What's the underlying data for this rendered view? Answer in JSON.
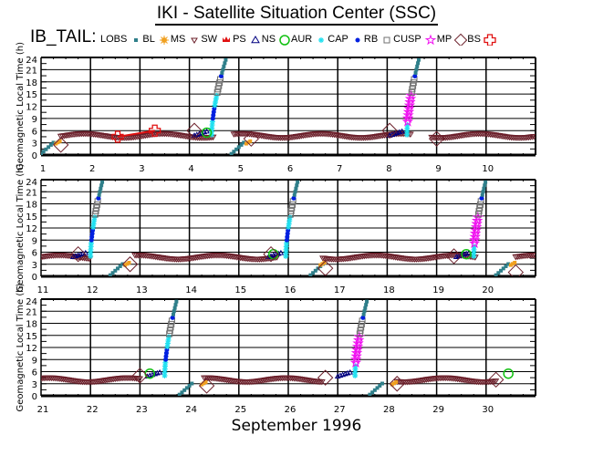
{
  "title": "IKI - Satellite Situation Center (SSC)",
  "mission": "IB_TAIL:",
  "legend": [
    {
      "key": "LOBS",
      "label": "LOBS",
      "marker": "none",
      "color": "#000000"
    },
    {
      "key": "BL",
      "label": "BL",
      "marker": "square",
      "color": "#2f7f8a"
    },
    {
      "key": "MS",
      "label": "MS",
      "marker": "sun",
      "color": "#f0a020"
    },
    {
      "key": "SW",
      "label": "SW",
      "marker": "triangle-down",
      "color": "#6b1f2a"
    },
    {
      "key": "PS",
      "label": "PS",
      "marker": "crown",
      "color": "#e01010"
    },
    {
      "key": "NS",
      "label": "NS",
      "marker": "triangle",
      "color": "#000080"
    },
    {
      "key": "AUR",
      "label": "AUR",
      "marker": "circle",
      "color": "#10c010"
    },
    {
      "key": "CAP",
      "label": "CAP",
      "marker": "asterisk",
      "color": "#20e0f0"
    },
    {
      "key": "RB",
      "label": "RB",
      "marker": "dot",
      "color": "#0020e0"
    },
    {
      "key": "CUSP",
      "label": "CUSP",
      "marker": "open-square",
      "color": "#707070"
    },
    {
      "key": "MP",
      "label": "MP",
      "marker": "star",
      "color": "#f010f0"
    },
    {
      "key": "BS",
      "label": "BS",
      "marker": "diamond",
      "color": "#6b1f2a"
    },
    {
      "key": "cross",
      "label": "",
      "marker": "cross",
      "color": "#e01010"
    }
  ],
  "month_label": "September   1996",
  "chart_data": {
    "type": "scatter",
    "ylabel": "Geomagnetic Local Time (h)",
    "yticks": [
      0,
      3,
      6,
      9,
      12,
      15,
      18,
      21,
      24
    ],
    "ylim": [
      0,
      24
    ],
    "panels": [
      {
        "xlim": [
          1,
          11
        ],
        "xticks": [
          1,
          2,
          3,
          4,
          5,
          6,
          7,
          8,
          9,
          10
        ],
        "xtick_labels": [
          "1",
          "2",
          "3",
          "4",
          "5",
          "6",
          "7",
          "8",
          "9",
          "10"
        ],
        "sw_track": {
          "base": 4.8,
          "amp": 0.5,
          "period": 1.6,
          "phase": 0.5,
          "segments": [
            [
              1.4,
              4.5
            ],
            [
              4.9,
              8.5
            ],
            [
              8.9,
              11
            ]
          ]
        },
        "orbits": [
          {
            "start": 1.0,
            "perigee": 4.45,
            "ascent_end": 4.75,
            "bs_in": 1.4,
            "bs_out": 4.1,
            "aur": 4.35,
            "mp": false
          },
          {
            "start": 4.85,
            "perigee": 8.4,
            "ascent_end": 8.65,
            "bs_in": 5.25,
            "bs_out": 8.05,
            "aur": null,
            "mp": true
          }
        ],
        "ps_markers": [
          [
            2.55,
            4.5
          ],
          [
            3.3,
            6.0
          ]
        ],
        "bs_markers": [
          [
            1.4,
            2.5
          ],
          [
            4.1,
            6.0
          ],
          [
            5.25,
            4.0
          ],
          [
            8.05,
            6.0
          ],
          [
            9.0,
            4.0
          ]
        ]
      },
      {
        "xlim": [
          11,
          21
        ],
        "xticks": [
          11,
          12,
          13,
          14,
          15,
          16,
          17,
          18,
          19,
          20
        ],
        "xtick_labels": [
          "11",
          "12",
          "13",
          "14",
          "15",
          "16",
          "17",
          "18",
          "19",
          "20"
        ],
        "sw_track": {
          "base": 4.8,
          "amp": 0.5,
          "period": 1.6,
          "phase": 0.9,
          "segments": [
            [
              11,
              12.0
            ],
            [
              12.9,
              15.8
            ],
            [
              16.7,
              19.8
            ],
            [
              20.6,
              21
            ]
          ]
        },
        "orbits": [
          {
            "start": 9.9,
            "perigee": 12.0,
            "ascent_end": 12.25,
            "bs_in": null,
            "bs_out": 11.75,
            "aur": null,
            "mp": false
          },
          {
            "start": 12.4,
            "perigee": 15.95,
            "ascent_end": 16.2,
            "bs_in": 12.8,
            "bs_out": 15.65,
            "aur": 15.7,
            "mp": false
          },
          {
            "start": 16.45,
            "perigee": 19.75,
            "ascent_end": 20.0,
            "bs_in": 16.75,
            "bs_out": 19.35,
            "aur": 19.6,
            "mp": true
          },
          {
            "start": 20.2,
            "perigee": null,
            "ascent_end": null,
            "bs_in": 20.6,
            "bs_out": null,
            "aur": null,
            "mp": false
          }
        ],
        "bs_markers": [
          [
            11.75,
            5.5
          ],
          [
            12.8,
            3.0
          ],
          [
            15.65,
            5.5
          ],
          [
            16.75,
            2.0
          ],
          [
            19.35,
            5.0
          ],
          [
            20.6,
            1.0
          ]
        ]
      },
      {
        "xlim": [
          21,
          31
        ],
        "xticks": [
          21,
          22,
          23,
          24,
          25,
          26,
          27,
          28,
          29,
          30
        ],
        "xtick_labels": [
          "21",
          "22",
          "23",
          "24",
          "25",
          "26",
          "27",
          "28",
          "29",
          "30"
        ],
        "sw_track": {
          "base": 4.0,
          "amp": 0.5,
          "period": 1.6,
          "phase": 0.2,
          "segments": [
            [
              21,
              23.0
            ],
            [
              24.3,
              26.7
            ],
            [
              28.2,
              30.2
            ]
          ]
        },
        "orbits": [
          {
            "start": 20.2,
            "perigee": 23.5,
            "ascent_end": 23.75,
            "bs_in": null,
            "bs_out": 23.0,
            "aur": 23.2,
            "mp": false
          },
          {
            "start": 23.8,
            "perigee": 27.35,
            "ascent_end": 27.6,
            "bs_in": 24.35,
            "bs_out": 26.75,
            "aur": null,
            "mp": true
          },
          {
            "start": 27.65,
            "perigee": null,
            "ascent_end": null,
            "bs_in": 28.2,
            "bs_out": 30.2,
            "aur": 30.45,
            "mp": false
          }
        ],
        "bs_markers": [
          [
            23.0,
            5.0
          ],
          [
            24.35,
            2.5
          ],
          [
            26.75,
            4.5
          ],
          [
            28.2,
            3.0
          ],
          [
            30.2,
            4.0
          ]
        ]
      }
    ]
  }
}
